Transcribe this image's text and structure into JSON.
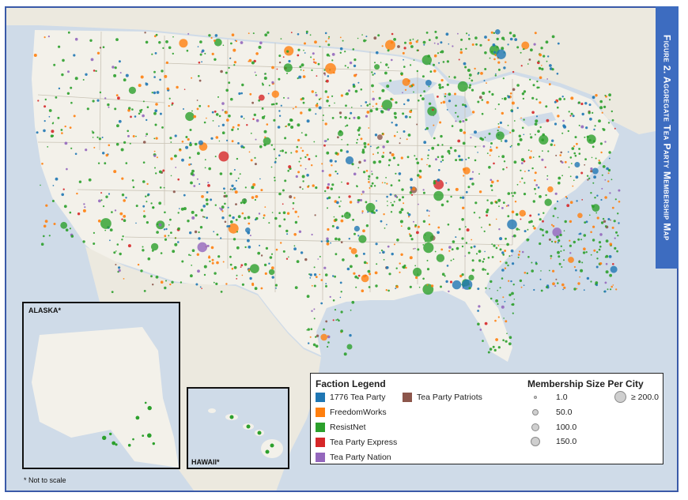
{
  "figure_title": "Figure 2. Aggregate Tea Party Membership Map",
  "insets": {
    "alaska_label": "ALASKA*",
    "hawaii_label": "HAWAII*",
    "not_to_scale": "* Not to scale"
  },
  "legend": {
    "faction_title": "Faction Legend",
    "factions": [
      {
        "label": "1776 Tea Party",
        "color": "#1f77b4"
      },
      {
        "label": "FreedomWorks",
        "color": "#ff7f0e"
      },
      {
        "label": "ResistNet",
        "color": "#2ca02c"
      },
      {
        "label": "Tea Party Express",
        "color": "#d62728"
      },
      {
        "label": "Tea Party Nation",
        "color": "#9467bd"
      },
      {
        "label": "Tea Party Patriots",
        "color": "#8c564b"
      }
    ],
    "size_title": "Membership Size Per City",
    "sizes": [
      "1.0",
      "50.0",
      "100.0",
      "150.0",
      "≥ 200.0"
    ]
  },
  "map_colors": {
    "water": "#cfdbe8",
    "land": "#f3f1ea",
    "foreign_land": "#ece9df",
    "state_border": "#c9c3b5"
  }
}
